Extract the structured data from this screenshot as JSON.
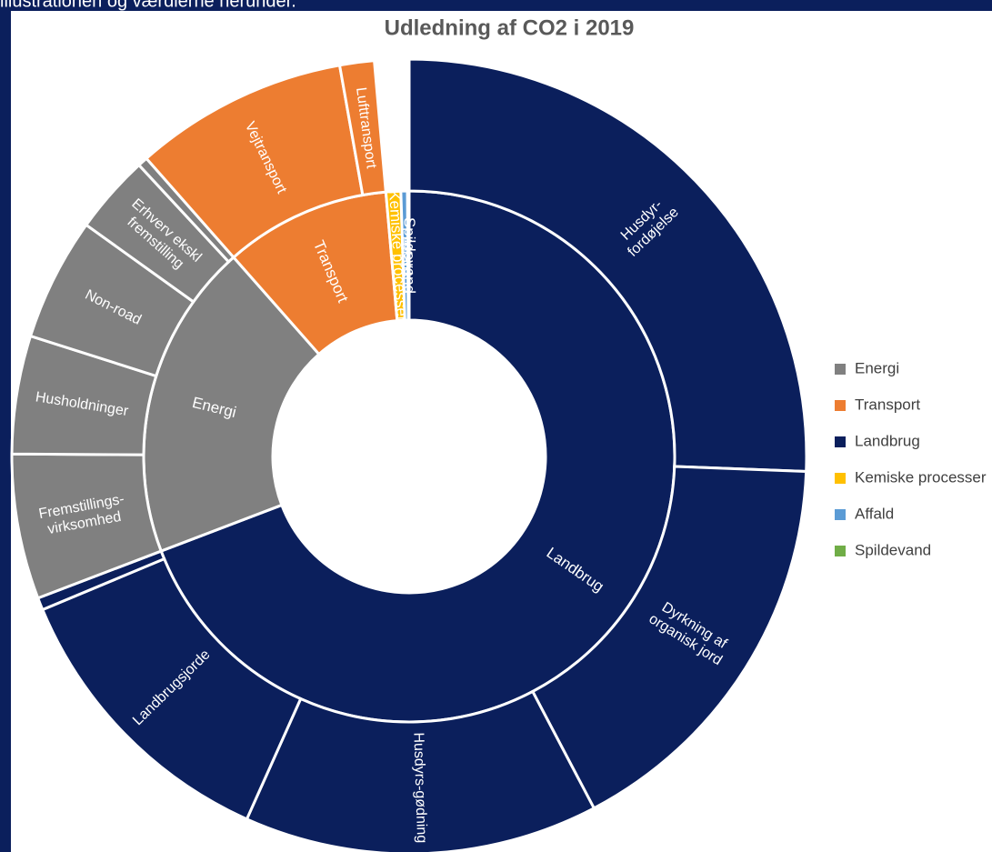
{
  "header": "illustrationen og værdierne herunder.",
  "chart_data": {
    "type": "sunburst",
    "title": "Udledning af CO2 i 2019",
    "legend": "right",
    "nodes": [
      {
        "name": "Landbrug",
        "color": "#0b1f5c",
        "value": 69.2,
        "children": [
          {
            "name": "Husdyr-\nfordøjelse",
            "value": 25.6
          },
          {
            "name": "Dyrkning af\norganisk jord",
            "value": 16.7
          },
          {
            "name": "Husdyrs-gødning",
            "value": 14.4
          },
          {
            "name": "Landbrugsjorde",
            "value": 12.0
          },
          {
            "name": null,
            "value": 0.5
          }
        ]
      },
      {
        "name": "Energi",
        "color": "#808080",
        "value": 19.3,
        "children": [
          {
            "name": "Fremstillings-\nvirksomhed",
            "value": 5.9
          },
          {
            "name": "Husholdninger",
            "value": 4.8
          },
          {
            "name": "Non-road",
            "value": 5.0
          },
          {
            "name": "Erhverv ekskl\nfremstilling",
            "value": 3.2
          },
          {
            "name": null,
            "value": 0.4
          }
        ]
      },
      {
        "name": "Transport",
        "color": "#ed7d31",
        "value": 10.1,
        "children": [
          {
            "name": "Vejtransport",
            "value": 8.7
          },
          {
            "name": "Lufttransport",
            "value": 1.4
          }
        ]
      },
      {
        "name": "Kemiske processer",
        "color": "#ffc000",
        "value": 0.9,
        "children": []
      },
      {
        "name": "Affald",
        "color": "#5b9bd5",
        "value": 0.4,
        "children": []
      },
      {
        "name": "Spildevand",
        "color": "#70ad47",
        "value": 0.1,
        "children": []
      }
    ],
    "legend_order": [
      1,
      2,
      0,
      3,
      4,
      5
    ]
  }
}
